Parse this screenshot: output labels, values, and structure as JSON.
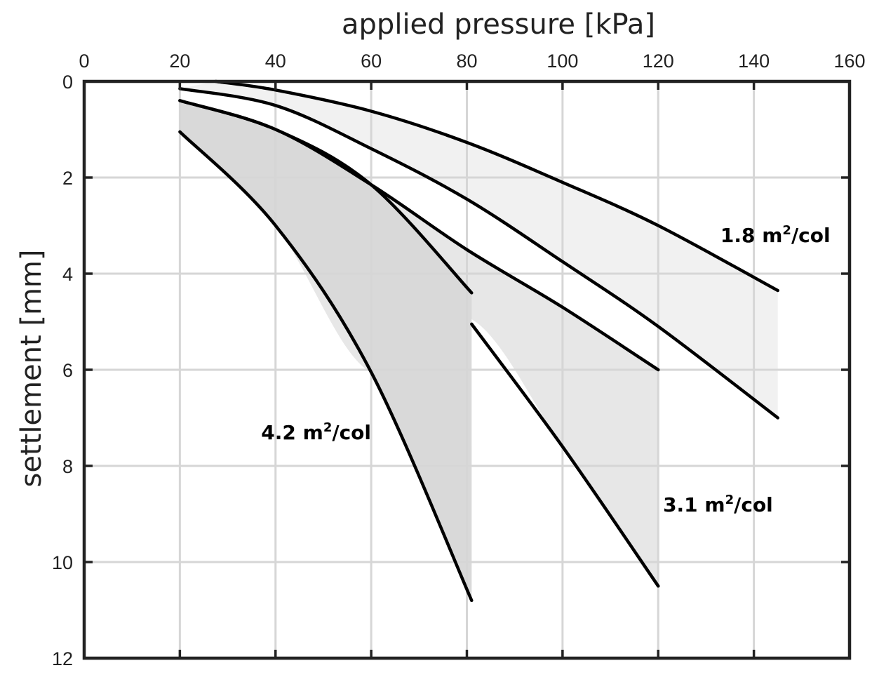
{
  "chart_data": {
    "type": "area",
    "xlabel": "applied pressure [kPa]",
    "ylabel": "settlement [mm]",
    "x_axis_position": "top",
    "y_axis_inverted": true,
    "xlim": [
      0,
      160
    ],
    "ylim": [
      0,
      12
    ],
    "xticks": [
      "0",
      "20",
      "40",
      "60",
      "80",
      "100",
      "120",
      "140",
      "160"
    ],
    "yticks": [
      "0",
      "2",
      "4",
      "6",
      "8",
      "10",
      "12"
    ],
    "grid": true,
    "bands": [
      {
        "label": "1.8 m²/col",
        "label_main": "1.8 m",
        "label_sup": "2",
        "label_rest": "/col",
        "fill": "#f1f1f1",
        "x_range": [
          20,
          145
        ],
        "upper": {
          "x": [
            27.5,
            40,
            60,
            80,
            100,
            120,
            145
          ],
          "y": [
            0,
            0.18,
            0.62,
            1.27,
            2.1,
            3.0,
            4.35
          ]
        },
        "lower": {
          "x": [
            20,
            40,
            60,
            80,
            100,
            120,
            145
          ],
          "y": [
            0.15,
            0.5,
            1.4,
            2.45,
            3.75,
            5.1,
            7.0
          ]
        },
        "label_anchor": [
          133,
          3.2
        ]
      },
      {
        "label": "3.1 m²/col",
        "label_main": "3.1 m",
        "label_sup": "2",
        "label_rest": "/col",
        "fill": "#e7e7e7",
        "x_range": [
          20,
          120
        ],
        "upper": {
          "x": [
            20,
            40,
            60,
            80,
            100,
            120
          ],
          "y": [
            0.4,
            1.0,
            2.15,
            3.5,
            4.7,
            6.0
          ]
        },
        "lower": {
          "x": [
            20,
            40,
            60,
            80,
            100,
            120
          ],
          "y": [
            1.05,
            3.0,
            6.05,
            4.9,
            7.6,
            10.5
          ]
        },
        "label_anchor": [
          121,
          8.8
        ]
      },
      {
        "label": "4.2 m²/col",
        "label_main": "4.2 m",
        "label_sup": "2",
        "label_rest": "/col",
        "fill": "#d9d9d9",
        "x_range": [
          20,
          81
        ],
        "upper": {
          "x": [
            20,
            40,
            60,
            81
          ],
          "y": [
            0.4,
            1.0,
            2.15,
            4.4
          ]
        },
        "lower": {
          "x": [
            20,
            40,
            60,
            81
          ],
          "y": [
            1.05,
            3.0,
            6.05,
            10.8
          ]
        },
        "label_anchor": [
          37,
          7.3
        ]
      }
    ],
    "curves": [
      {
        "name": "1.8 upper",
        "x": [
          27.5,
          40,
          60,
          80,
          100,
          120,
          145
        ],
        "y": [
          0,
          0.18,
          0.62,
          1.27,
          2.1,
          3.0,
          4.35
        ]
      },
      {
        "name": "1.8 lower",
        "x": [
          20,
          40,
          60,
          80,
          100,
          120,
          145
        ],
        "y": [
          0.15,
          0.5,
          1.4,
          2.45,
          3.75,
          5.1,
          7.0
        ]
      },
      {
        "name": "3.1 upper",
        "x": [
          20,
          40,
          60,
          80,
          100,
          120
        ],
        "y": [
          0.4,
          1.0,
          2.15,
          3.5,
          4.7,
          6.0
        ]
      },
      {
        "name": "3.1 lower",
        "x": [
          81,
          100,
          120
        ],
        "y": [
          5.05,
          7.6,
          10.5
        ]
      },
      {
        "name": "4.2 upper",
        "x": [
          20,
          40,
          60,
          81
        ],
        "y": [
          0.4,
          1.0,
          2.15,
          4.4
        ]
      },
      {
        "name": "4.2 lower",
        "x": [
          20,
          40,
          60,
          81
        ],
        "y": [
          1.05,
          3.0,
          6.05,
          10.8
        ]
      }
    ]
  }
}
